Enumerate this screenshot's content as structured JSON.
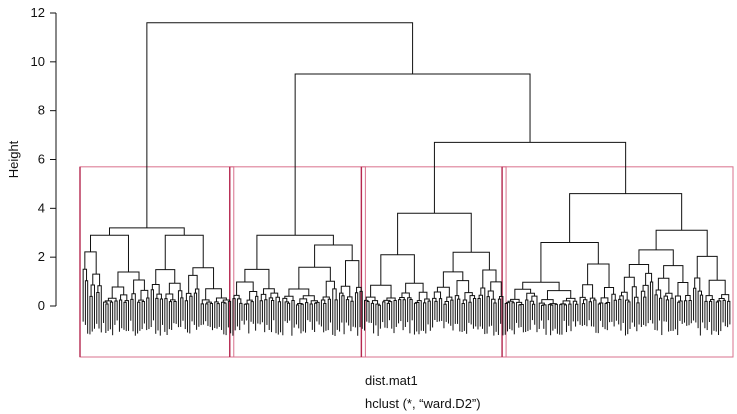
{
  "chart_data": {
    "type": "dendrogram",
    "ylabel": "Height",
    "ylim": [
      0,
      12
    ],
    "yticks": [
      0,
      2,
      4,
      6,
      8,
      10,
      12
    ],
    "xlabel": "dist.mat1",
    "sublabel": "hclust (*, “ward.D2”)",
    "merges": [
      {
        "height": 11.6,
        "joins": [
          "cluster-1",
          "clusters-2-4"
        ]
      },
      {
        "height": 9.5,
        "joins": [
          "cluster-2",
          "clusters-3-4"
        ]
      },
      {
        "height": 6.7,
        "joins": [
          "cluster-3",
          "cluster-4"
        ]
      }
    ],
    "clusters": [
      {
        "id": "cluster-1",
        "leaves": 66,
        "root_height": 3.2,
        "sub": [
          {
            "height": 2.9,
            "leaves": 30
          },
          {
            "height": 2.9,
            "leaves": 36
          }
        ]
      },
      {
        "id": "cluster-2",
        "leaves": 58,
        "root_height": 2.9,
        "sub": [
          {
            "height": 1.5,
            "leaves": 22
          },
          {
            "height": 2.5,
            "leaves": 36
          }
        ]
      },
      {
        "id": "cluster-3",
        "leaves": 62,
        "root_height": 3.8,
        "sub": [
          {
            "height": 2.1,
            "leaves": 30
          },
          {
            "height": 2.2,
            "leaves": 32
          }
        ]
      },
      {
        "id": "cluster-4",
        "leaves": 100,
        "root_height": 4.6,
        "sub": [
          {
            "height": 2.6,
            "leaves": 50
          },
          {
            "height": 3.1,
            "leaves": 50
          }
        ]
      }
    ],
    "cut_height": 5.7,
    "cut_clusters": 4,
    "colors": {
      "tree": "#111111",
      "rect": "#d9718c",
      "rect_edge": "#b5284f",
      "axis": "#111111"
    }
  }
}
